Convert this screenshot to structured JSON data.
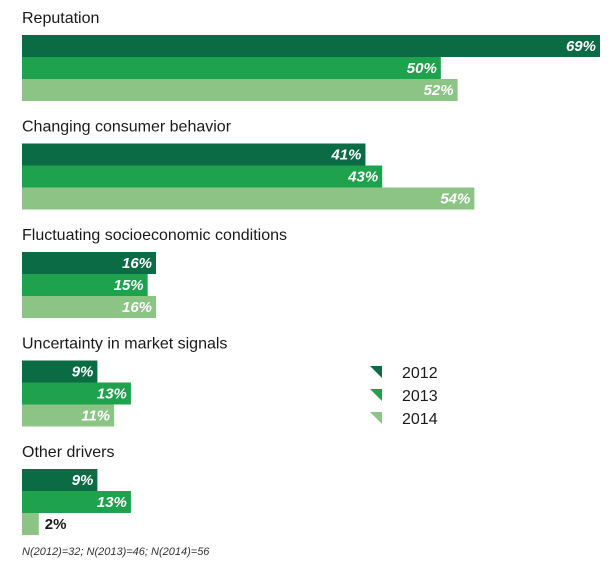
{
  "chart_data": {
    "type": "bar",
    "orientation": "horizontal",
    "unit": "%",
    "categories": [
      "Reputation",
      "Changing consumer behavior",
      "Fluctuating socioeconomic conditions",
      "Uncertainty in market signals",
      "Other drivers"
    ],
    "series": [
      {
        "name": "2012",
        "color": "#0b6b45",
        "values": [
          69,
          41,
          16,
          9,
          9
        ]
      },
      {
        "name": "2013",
        "color": "#1fa24d",
        "values": [
          50,
          43,
          15,
          13,
          13
        ]
      },
      {
        "name": "2014",
        "color": "#8cc486",
        "values": [
          52,
          54,
          16,
          11,
          2
        ]
      }
    ],
    "xlim": [
      0,
      69
    ],
    "legend_position": "right",
    "data_labels": true,
    "grid": false
  },
  "footnote": "N(2012)=32; N(2013)=46; N(2014)=56"
}
